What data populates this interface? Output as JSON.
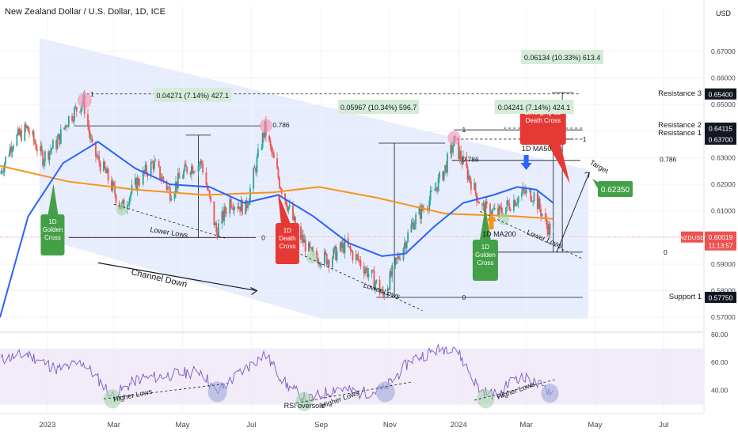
{
  "header": {
    "title": "New Zealand Dollar / U.S. Dollar, 1D, ICE",
    "currency": "USD"
  },
  "colors": {
    "up": "#26a69a",
    "down": "#ef5350",
    "ma50": "#2962ff",
    "ma200": "#f7931a",
    "channel": "#c9d7fa",
    "rsi": "#7e57c2",
    "rsi_band": "#ede7f6",
    "green_box": "#d5ecd9",
    "green_callout": "#43a047",
    "red_callout": "#e53935",
    "circle_green": "#a5d6a7",
    "circle_red": "#f48fb1",
    "circle_blue": "#9fa8da"
  },
  "chart_data": [
    {
      "type": "candlestick",
      "title": "New Zealand Dollar / U.S. Dollar, 1D, ICE",
      "ylim": [
        0.565,
        0.681
      ],
      "x_range": [
        "2022-11-20",
        "2024-08-05"
      ],
      "x_ticks": [
        {
          "label": "2023",
          "date": "2023-01-01"
        },
        {
          "label": "Mar",
          "date": "2023-03-01"
        },
        {
          "label": "May",
          "date": "2023-05-01"
        },
        {
          "label": "Jul",
          "date": "2023-07-01"
        },
        {
          "label": "Sep",
          "date": "2023-09-01"
        },
        {
          "label": "Nov",
          "date": "2023-11-01"
        },
        {
          "label": "2024",
          "date": "2024-01-01"
        },
        {
          "label": "Mar",
          "date": "2024-03-01"
        },
        {
          "label": "May",
          "date": "2024-05-01"
        },
        {
          "label": "Jul",
          "date": "2024-07-01"
        }
      ],
      "y_ticks": [
        "0.67000",
        "0.66000",
        "0.65000",
        "0.64000",
        "0.63000",
        "0.62000",
        "0.61000",
        "0.60000",
        "0.59000",
        "0.58000",
        "0.57000"
      ],
      "price_path": [
        [
          "2022-11-20",
          0.624
        ],
        [
          "2022-12-01",
          0.636
        ],
        [
          "2022-12-14",
          0.641
        ],
        [
          "2022-12-28",
          0.63
        ],
        [
          "2023-01-10",
          0.636
        ],
        [
          "2023-01-20",
          0.645
        ],
        [
          "2023-02-02",
          0.651
        ],
        [
          "2023-02-10",
          0.633
        ],
        [
          "2023-02-22",
          0.624
        ],
        [
          "2023-03-08",
          0.611
        ],
        [
          "2023-03-22",
          0.621
        ],
        [
          "2023-04-05",
          0.628
        ],
        [
          "2023-04-20",
          0.617
        ],
        [
          "2023-05-05",
          0.626
        ],
        [
          "2023-05-18",
          0.628
        ],
        [
          "2023-05-31",
          0.602
        ],
        [
          "2023-06-12",
          0.614
        ],
        [
          "2023-06-26",
          0.611
        ],
        [
          "2023-07-13",
          0.641
        ],
        [
          "2023-07-26",
          0.621
        ],
        [
          "2023-08-10",
          0.603
        ],
        [
          "2023-08-24",
          0.593
        ],
        [
          "2023-09-08",
          0.592
        ],
        [
          "2023-09-22",
          0.597
        ],
        [
          "2023-10-05",
          0.591
        ],
        [
          "2023-10-18",
          0.584
        ],
        [
          "2023-10-26",
          0.578
        ],
        [
          "2023-11-08",
          0.592
        ],
        [
          "2023-11-22",
          0.606
        ],
        [
          "2023-12-06",
          0.614
        ],
        [
          "2023-12-20",
          0.626
        ],
        [
          "2023-12-28",
          0.636
        ],
        [
          "2024-01-12",
          0.621
        ],
        [
          "2024-01-22",
          0.611
        ],
        [
          "2024-02-05",
          0.609
        ],
        [
          "2024-02-16",
          0.613
        ],
        [
          "2024-02-28",
          0.617
        ],
        [
          "2024-03-08",
          0.616
        ],
        [
          "2024-03-19",
          0.605
        ],
        [
          "2024-03-25",
          0.6
        ]
      ],
      "rsi_path": [
        [
          "2022-11-20",
          62
        ],
        [
          "2022-12-14",
          66
        ],
        [
          "2023-01-10",
          55
        ],
        [
          "2023-02-02",
          60
        ],
        [
          "2023-02-28",
          36
        ],
        [
          "2023-03-22",
          48
        ],
        [
          "2023-04-10",
          50
        ],
        [
          "2023-05-18",
          54
        ],
        [
          "2023-05-31",
          38
        ],
        [
          "2023-06-20",
          52
        ],
        [
          "2023-07-13",
          66
        ],
        [
          "2023-08-01",
          44
        ],
        [
          "2023-08-20",
          33
        ],
        [
          "2023-09-15",
          42
        ],
        [
          "2023-10-05",
          38
        ],
        [
          "2023-10-26",
          40
        ],
        [
          "2023-11-20",
          62
        ],
        [
          "2023-12-10",
          68
        ],
        [
          "2023-12-28",
          72
        ],
        [
          "2024-01-20",
          40
        ],
        [
          "2024-02-05",
          36
        ],
        [
          "2024-02-20",
          50
        ],
        [
          "2024-03-01",
          48
        ],
        [
          "2024-03-19",
          41
        ],
        [
          "2024-03-25",
          39
        ]
      ],
      "series": [
        {
          "name": "1D MA50",
          "points": [
            [
              "2022-11-20",
              0.57
            ],
            [
              "2022-12-15",
              0.608
            ],
            [
              "2023-01-15",
              0.628
            ],
            [
              "2023-02-15",
              0.636
            ],
            [
              "2023-03-20",
              0.626
            ],
            [
              "2023-04-20",
              0.62
            ],
            [
              "2023-05-25",
              0.619
            ],
            [
              "2023-06-25",
              0.613
            ],
            [
              "2023-07-25",
              0.616
            ],
            [
              "2023-08-25",
              0.608
            ],
            [
              "2023-09-25",
              0.598
            ],
            [
              "2023-10-25",
              0.593
            ],
            [
              "2023-11-15",
              0.594
            ],
            [
              "2023-12-10",
              0.604
            ],
            [
              "2024-01-05",
              0.613
            ],
            [
              "2024-02-01",
              0.616
            ],
            [
              "2024-02-22",
              0.619
            ],
            [
              "2024-03-10",
              0.618
            ],
            [
              "2024-03-25",
              0.613
            ]
          ]
        },
        {
          "name": "1D MA200",
          "points": [
            [
              "2022-11-20",
              0.627
            ],
            [
              "2023-01-20",
              0.621
            ],
            [
              "2023-03-20",
              0.618
            ],
            [
              "2023-05-20",
              0.616
            ],
            [
              "2023-07-20",
              0.617
            ],
            [
              "2023-08-30",
              0.619
            ],
            [
              "2023-10-20",
              0.615
            ],
            [
              "2023-12-20",
              0.609
            ],
            [
              "2024-02-20",
              0.608
            ],
            [
              "2024-03-25",
              0.607
            ]
          ]
        }
      ],
      "price_labels": [
        {
          "label": "Resistance 3",
          "value": 0.654,
          "text": "0.65400"
        },
        {
          "label": "Resistance 2",
          "value": 0.64115,
          "text": "0.64115"
        },
        {
          "label": "Resistance 1",
          "value": 0.637,
          "text": "0.63700"
        },
        {
          "label": "Support 1",
          "value": 0.5775,
          "text": "0.57750"
        }
      ],
      "current_price": {
        "symbol": "NZDUSD",
        "value": 0.60019,
        "text": "0.60019",
        "countdown": "11:13:57"
      },
      "target": {
        "label": "Target",
        "value": 0.6235,
        "text": "0.62350"
      },
      "measures": [
        {
          "text": "0.04271 (7.14%) 427.1"
        },
        {
          "text": "0.05967 (10.34%) 596.7"
        },
        {
          "text": "0.04241 (7.14%) 424.1"
        },
        {
          "text": "0.06134 (10.33%) 613.4"
        }
      ],
      "fib_labels": {
        "one": "1",
        "fib786": "0.786",
        "zero": "0"
      },
      "annotations": {
        "golden_cross": "1D Golden Cross",
        "death_cross": "1D Death Cross",
        "emerging_death_cross": "Emerging 1D Death Cross",
        "lower_lows": "Lower Lows",
        "channel_down": "Channel Down",
        "ma50_label": "1D MA50",
        "ma200_label": "1D MA200"
      }
    },
    {
      "type": "line",
      "ylim": [
        24,
        81
      ],
      "y_ticks": [
        "80.00",
        "60.00",
        "40.00"
      ],
      "band": [
        30,
        70
      ],
      "annotations": {
        "higher_lows": "Higher Lows",
        "rsi_oversold": "RSI oversold"
      }
    }
  ]
}
